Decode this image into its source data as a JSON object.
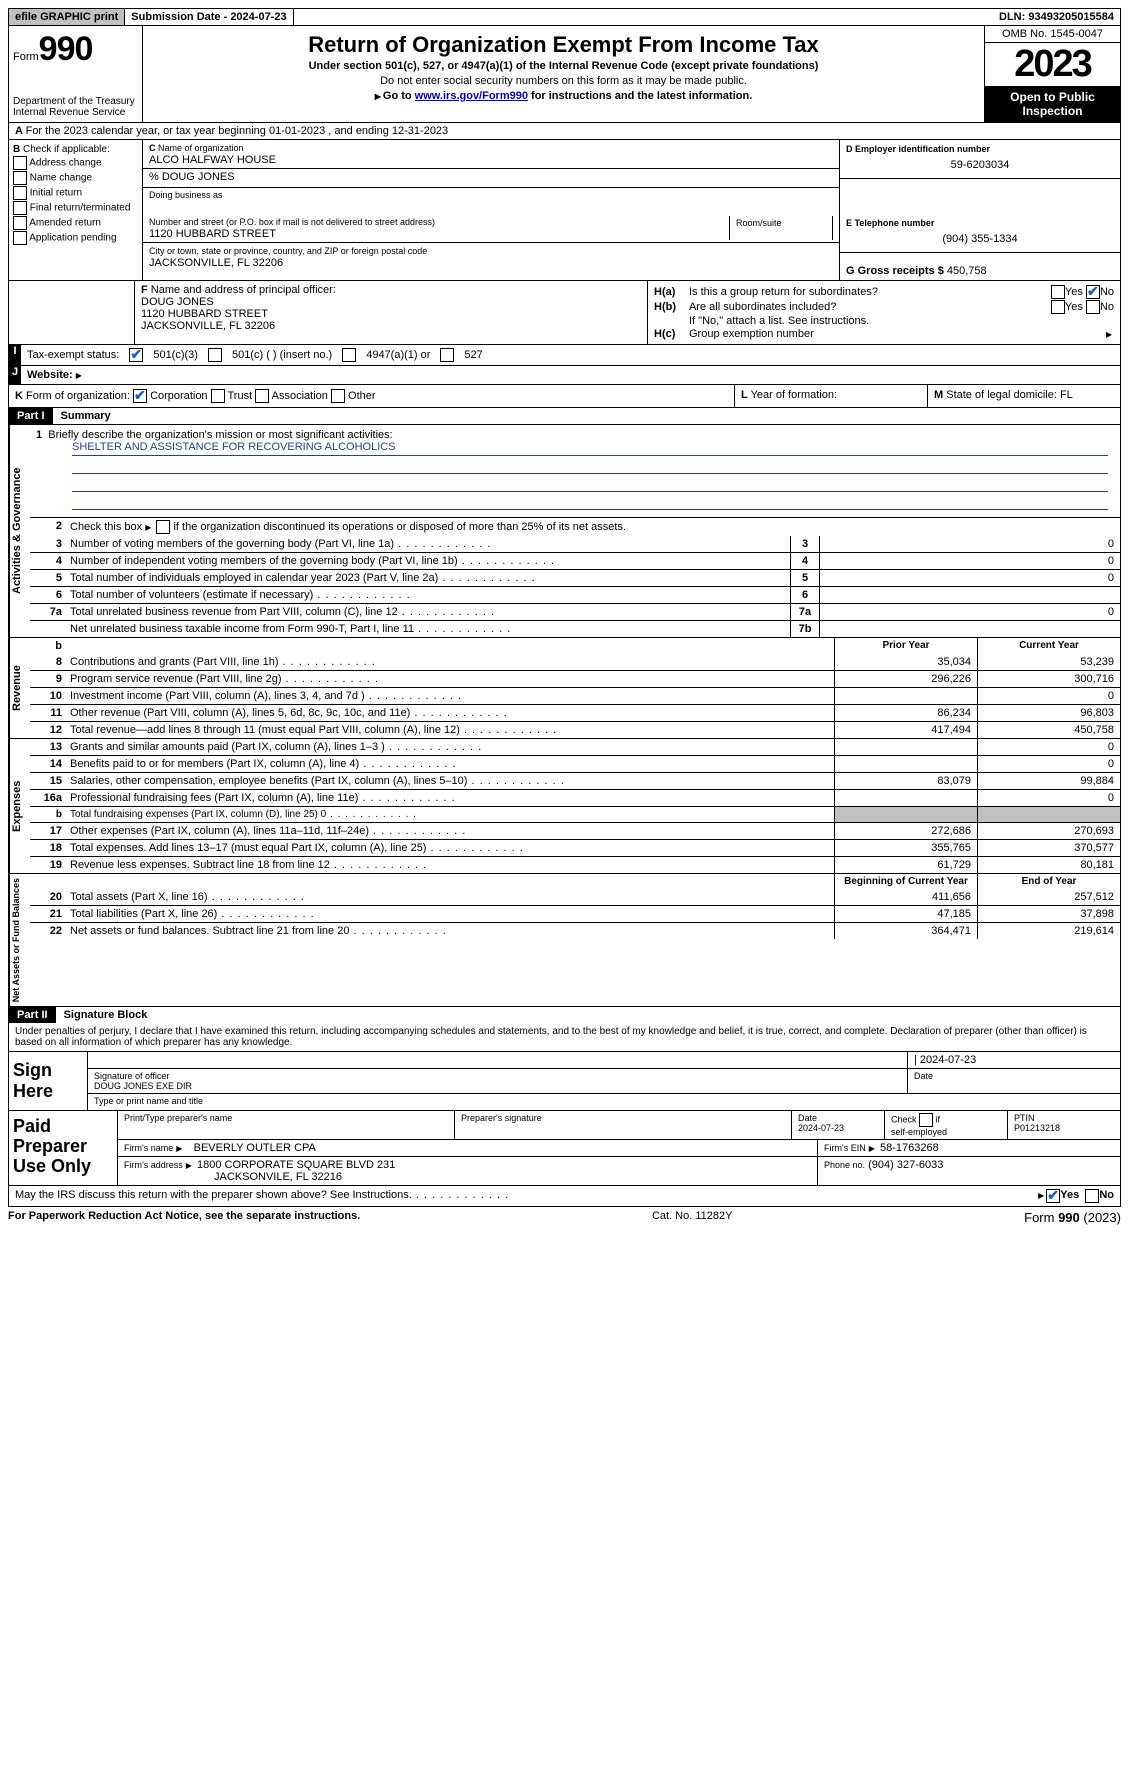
{
  "top": {
    "efile": "efile GRAPHIC print",
    "submission": "Submission Date - 2024-07-23",
    "dln": "DLN: 93493205015584"
  },
  "header": {
    "form_word": "Form",
    "form_num": "990",
    "dept": "Department of the Treasury\nInternal Revenue Service",
    "title": "Return of Organization Exempt From Income Tax",
    "subtitle": "Under section 501(c), 527, or 4947(a)(1) of the Internal Revenue Code (except private foundations)",
    "note1": "Do not enter social security numbers on this form as it may be made public.",
    "note2_pre": "Go to ",
    "note2_link": "www.irs.gov/Form990",
    "note2_post": " for instructions and the latest information.",
    "omb": "OMB No. 1545-0047",
    "year": "2023",
    "open": "Open to Public Inspection"
  },
  "A": "For the 2023 calendar year, or tax year beginning 01-01-2023   , and ending 12-31-2023",
  "B": {
    "label": "Check if applicable:",
    "opts": [
      "Address change",
      "Name change",
      "Initial return",
      "Final return/terminated",
      "Amended return",
      "Application pending"
    ]
  },
  "C": {
    "name_lbl": "Name of organization",
    "name": "ALCO HALFWAY HOUSE",
    "co": "% DOUG JONES",
    "dba_lbl": "Doing business as",
    "addr_lbl": "Number and street (or P.O. box if mail is not delivered to street address)",
    "addr": "1120 HUBBARD STREET",
    "room_lbl": "Room/suite",
    "city_lbl": "City or town, state or province, country, and ZIP or foreign postal code",
    "city": "JACKSONVILLE, FL  32206"
  },
  "D": {
    "lbl": "D Employer identification number",
    "val": "59-6203034"
  },
  "E": {
    "lbl": "E Telephone number",
    "val": "(904) 355-1334"
  },
  "G": {
    "lbl": "G Gross receipts $",
    "val": "450,758"
  },
  "F": {
    "lbl": "Name and address of principal officer:",
    "name": "DOUG JONES",
    "addr1": "1120 HUBBARD STREET",
    "addr2": "JACKSONVILLE, FL  32206"
  },
  "H": {
    "a": "Is this a group return for subordinates?",
    "b": "Are all subordinates included?",
    "b_note": "If \"No,\" attach a list. See instructions.",
    "c": "Group exemption number",
    "yes": "Yes",
    "no": "No"
  },
  "I": {
    "lbl": "Tax-exempt status:",
    "o1": "501(c)(3)",
    "o2": "501(c) (  ) (insert no.)",
    "o3": "4947(a)(1) or",
    "o4": "527"
  },
  "J": {
    "lbl": "Website:"
  },
  "K": {
    "lbl": "Form of organization:",
    "o1": "Corporation",
    "o2": "Trust",
    "o3": "Association",
    "o4": "Other"
  },
  "L": "Year of formation:",
  "M": "State of legal domicile: FL",
  "part1": {
    "hdr": "Part I",
    "title": "Summary"
  },
  "summary": {
    "tabs": [
      "Activities & Governance",
      "Revenue",
      "Expenses",
      "Net Assets or Fund Balances"
    ],
    "l1_lbl": "Briefly describe the organization's mission or most significant activities:",
    "l1_val": "SHELTER AND ASSISTANCE FOR RECOVERING ALCOHOLICS",
    "l2": "Check this box       if the organization discontinued its operations or disposed of more than 25% of its net assets.",
    "lines_gov": [
      {
        "n": "3",
        "t": "Number of voting members of the governing body (Part VI, line 1a)",
        "b": "3",
        "v": "0"
      },
      {
        "n": "4",
        "t": "Number of independent voting members of the governing body (Part VI, line 1b)",
        "b": "4",
        "v": "0"
      },
      {
        "n": "5",
        "t": "Total number of individuals employed in calendar year 2023 (Part V, line 2a)",
        "b": "5",
        "v": "0"
      },
      {
        "n": "6",
        "t": "Total number of volunteers (estimate if necessary)",
        "b": "6",
        "v": ""
      },
      {
        "n": "7a",
        "t": "Total unrelated business revenue from Part VIII, column (C), line 12",
        "b": "7a",
        "v": "0"
      },
      {
        "n": "",
        "t": "Net unrelated business taxable income from Form 990-T, Part I, line 11",
        "b": "7b",
        "v": ""
      }
    ],
    "hdr_b": "b",
    "hdr_prior": "Prior Year",
    "hdr_curr": "Current Year",
    "rev": [
      {
        "n": "8",
        "t": "Contributions and grants (Part VIII, line 1h)",
        "p": "35,034",
        "c": "53,239"
      },
      {
        "n": "9",
        "t": "Program service revenue (Part VIII, line 2g)",
        "p": "296,226",
        "c": "300,716"
      },
      {
        "n": "10",
        "t": "Investment income (Part VIII, column (A), lines 3, 4, and 7d )",
        "p": "",
        "c": "0"
      },
      {
        "n": "11",
        "t": "Other revenue (Part VIII, column (A), lines 5, 6d, 8c, 9c, 10c, and 11e)",
        "p": "86,234",
        "c": "96,803"
      },
      {
        "n": "12",
        "t": "Total revenue—add lines 8 through 11 (must equal Part VIII, column (A), line 12)",
        "p": "417,494",
        "c": "450,758"
      }
    ],
    "exp": [
      {
        "n": "13",
        "t": "Grants and similar amounts paid (Part IX, column (A), lines 1–3 )",
        "p": "",
        "c": "0"
      },
      {
        "n": "14",
        "t": "Benefits paid to or for members (Part IX, column (A), line 4)",
        "p": "",
        "c": "0"
      },
      {
        "n": "15",
        "t": "Salaries, other compensation, employee benefits (Part IX, column (A), lines 5–10)",
        "p": "83,079",
        "c": "99,884"
      },
      {
        "n": "16a",
        "t": "Professional fundraising fees (Part IX, column (A), line 11e)",
        "p": "",
        "c": "0"
      },
      {
        "n": "b",
        "t": "Total fundraising expenses (Part IX, column (D), line 25) 0",
        "p": "SHADE",
        "c": "SHADE"
      },
      {
        "n": "17",
        "t": "Other expenses (Part IX, column (A), lines 11a–11d, 11f–24e)",
        "p": "272,686",
        "c": "270,693"
      },
      {
        "n": "18",
        "t": "Total expenses. Add lines 13–17 (must equal Part IX, column (A), line 25)",
        "p": "355,765",
        "c": "370,577"
      },
      {
        "n": "19",
        "t": "Revenue less expenses. Subtract line 18 from line 12",
        "p": "61,729",
        "c": "80,181"
      }
    ],
    "hdr_beg": "Beginning of Current Year",
    "hdr_end": "End of Year",
    "net": [
      {
        "n": "20",
        "t": "Total assets (Part X, line 16)",
        "p": "411,656",
        "c": "257,512"
      },
      {
        "n": "21",
        "t": "Total liabilities (Part X, line 26)",
        "p": "47,185",
        "c": "37,898"
      },
      {
        "n": "22",
        "t": "Net assets or fund balances. Subtract line 21 from line 20",
        "p": "364,471",
        "c": "219,614"
      }
    ]
  },
  "part2": {
    "hdr": "Part II",
    "title": "Signature Block"
  },
  "perjury": "Under penalties of perjury, I declare that I have examined this return, including accompanying schedules and statements, and to the best of my knowledge and belief, it is true, correct, and complete. Declaration of preparer (other than officer) is based on all information of which preparer has any knowledge.",
  "sign": {
    "here": "Sign Here",
    "sig_lbl": "Signature of officer",
    "date_lbl": "Date",
    "date_val": "2024-07-23",
    "name": "DOUG JONES  EXE DIR",
    "name_lbl": "Type or print name and title"
  },
  "prep": {
    "lbl": "Paid Preparer Use Only",
    "c1": "Print/Type preparer's name",
    "c2": "Preparer's signature",
    "c3": "Date",
    "c3v": "2024-07-23",
    "c4": "Check         if self-employed",
    "c5": "PTIN",
    "c5v": "P01213218",
    "firm_lbl": "Firm's name",
    "firm": "BEVERLY OUTLER CPA",
    "ein_lbl": "Firm's EIN",
    "ein": "58-1763268",
    "addr_lbl": "Firm's address",
    "addr1": "1800 CORPORATE SQUARE BLVD 231",
    "addr2": "JACKSONVILE, FL  32216",
    "phone_lbl": "Phone no.",
    "phone": "(904) 327-6033"
  },
  "discuss": "May the IRS discuss this return with the preparer shown above? See Instructions.",
  "footer": {
    "l": "For Paperwork Reduction Act Notice, see the separate instructions.",
    "c": "Cat. No. 11282Y",
    "r_pre": "Form ",
    "r_b": "990",
    "r_post": " (2023)"
  }
}
